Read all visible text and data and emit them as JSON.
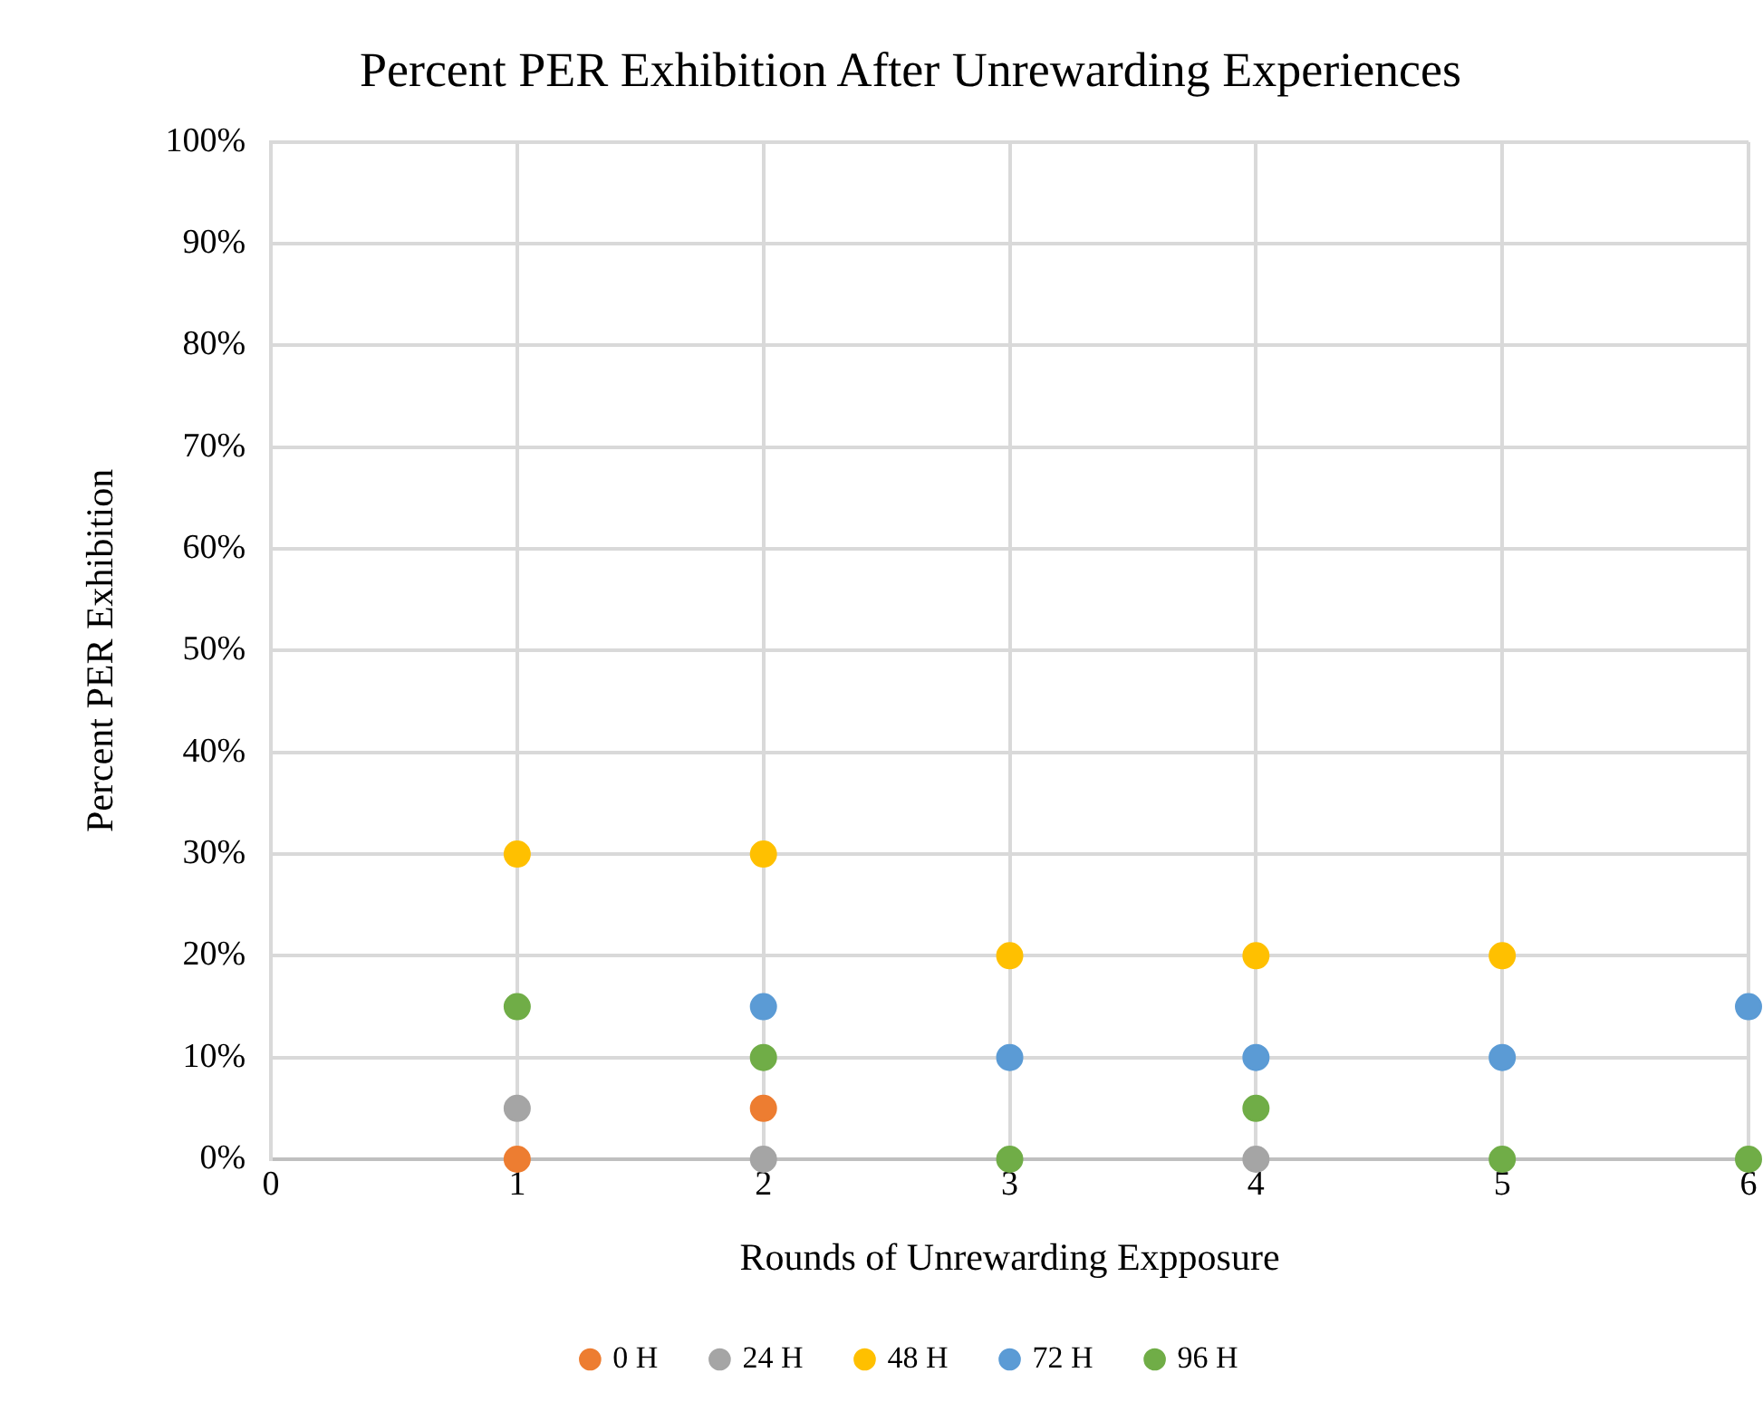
{
  "chart_data": {
    "type": "scatter",
    "title": "Percent PER Exhibition After Unrewarding Experiences",
    "xlabel": "Rounds of Unrewarding Expposure",
    "ylabel": "Percent PER Exhibition",
    "x": [
      1,
      2,
      3,
      4,
      5,
      6
    ],
    "series": [
      {
        "name": "0 H",
        "color": "#ed7d31",
        "values": [
          0,
          5,
          null,
          null,
          null,
          null
        ]
      },
      {
        "name": "24 H",
        "color": "#a5a5a5",
        "values": [
          5,
          0,
          null,
          0,
          null,
          null
        ]
      },
      {
        "name": "48 H",
        "color": "#ffc000",
        "values": [
          30,
          30,
          20,
          20,
          20,
          null
        ]
      },
      {
        "name": "72 H",
        "color": "#5b9bd5",
        "values": [
          null,
          15,
          10,
          10,
          10,
          15
        ]
      },
      {
        "name": "96 H",
        "color": "#70ad47",
        "values": [
          15,
          10,
          0,
          5,
          0,
          0
        ]
      }
    ],
    "xlim": [
      0,
      6
    ],
    "xticks": [
      0,
      1,
      2,
      3,
      4,
      5,
      6
    ],
    "ylim": [
      0,
      100
    ],
    "yticks": [
      {
        "value": 0,
        "label": "0%"
      },
      {
        "value": 10,
        "label": "10%"
      },
      {
        "value": 20,
        "label": "20%"
      },
      {
        "value": 30,
        "label": "30%"
      },
      {
        "value": 40,
        "label": "40%"
      },
      {
        "value": 50,
        "label": "50%"
      },
      {
        "value": 60,
        "label": "60%"
      },
      {
        "value": 70,
        "label": "70%"
      },
      {
        "value": 80,
        "label": "80%"
      },
      {
        "value": 90,
        "label": "90%"
      },
      {
        "value": 100,
        "label": "100%"
      }
    ],
    "grid": true,
    "legend": "bottom",
    "marker": "circle"
  }
}
